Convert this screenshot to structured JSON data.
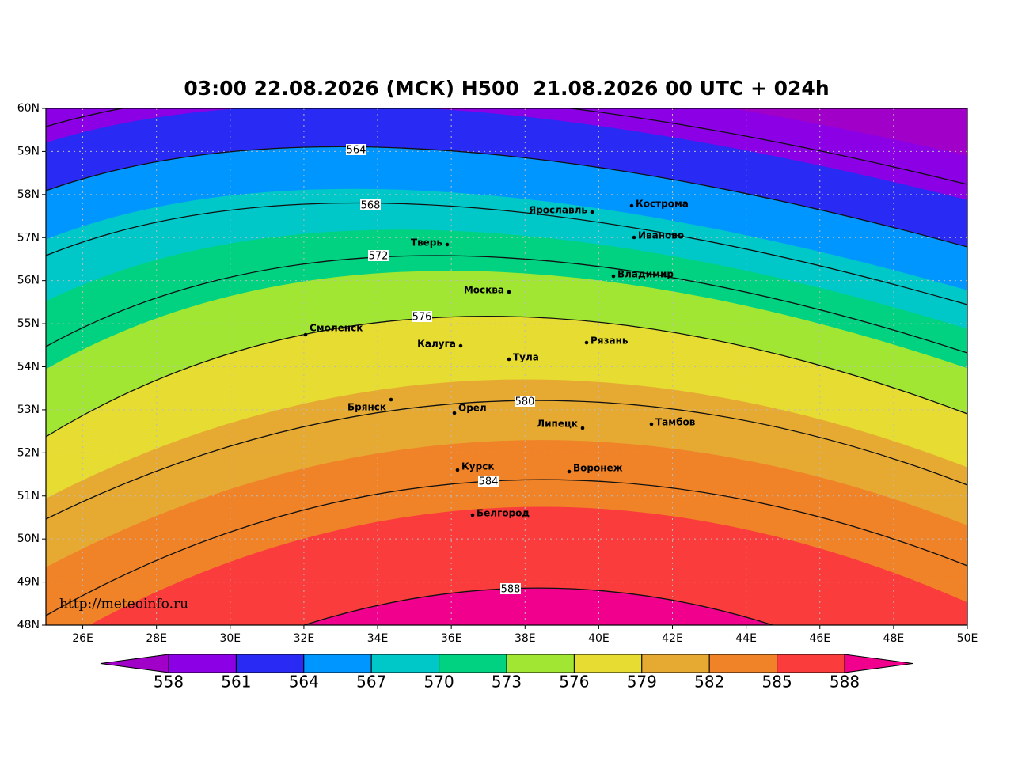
{
  "title": "03:00 22.08.2026 (МСК) H500  21.08.2026 00 UTC + 024h",
  "lat_labels": [
    "60N",
    "59N",
    "58N",
    "57N",
    "56N",
    "55N",
    "54N",
    "53N",
    "52N",
    "51N",
    "50N",
    "49N",
    "48N"
  ],
  "lon_labels": [
    "26E",
    "28E",
    "30E",
    "32E",
    "34E",
    "36E",
    "38E",
    "40E",
    "42E",
    "44E",
    "46E",
    "48E",
    "50E"
  ],
  "cities": [
    "Кострома",
    "Ярославль",
    "Иваново",
    "Тверь",
    "Владимир",
    "Москва",
    "Смоленск",
    "Калуга",
    "Рязань",
    "Тула",
    "Брянск",
    "Орел",
    "Липецк",
    "Тамбов",
    "Курск",
    "Воронеж",
    "Белгород"
  ],
  "contour_labels": [
    "564",
    "568",
    "572",
    "576",
    "580",
    "584",
    "588"
  ],
  "colorbar": {
    "labels": [
      "558",
      "561",
      "564",
      "567",
      "570",
      "573",
      "576",
      "579",
      "582",
      "585",
      "588"
    ],
    "colors": [
      "#a000c8",
      "#8c00e6",
      "#2a2af5",
      "#0096ff",
      "#00c8c8",
      "#00d282",
      "#a0e632",
      "#e6dc32",
      "#e6aa32",
      "#f08228",
      "#fa3c3c",
      "#f0008c"
    ]
  },
  "watermark": "http://meteoinfo.ru"
}
